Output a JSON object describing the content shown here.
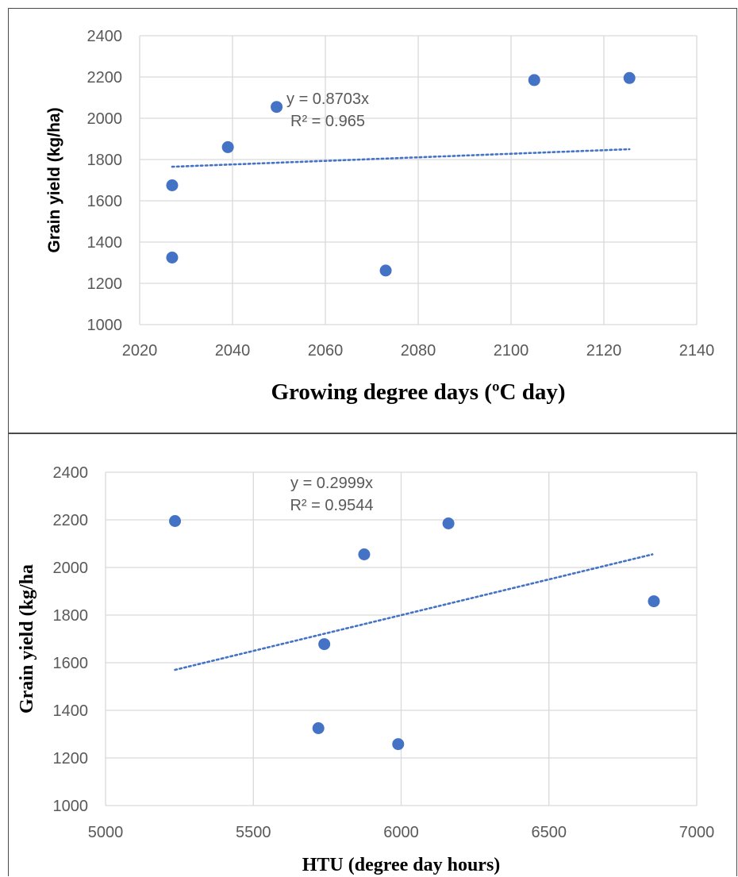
{
  "chart_data": [
    {
      "type": "scatter",
      "xlabel": "Growing degree days (ºC day)",
      "ylabel": "Grain yield (kg/ha)",
      "xlim": [
        2020,
        2140
      ],
      "ylim": [
        1000,
        2400
      ],
      "x_ticks": [
        2020,
        2040,
        2060,
        2080,
        2100,
        2120,
        2140
      ],
      "y_ticks": [
        1000,
        1200,
        1400,
        1600,
        1800,
        2000,
        2200,
        2400
      ],
      "grid": true,
      "series": [
        {
          "points": [
            {
              "x": 2027,
              "y": 1325
            },
            {
              "x": 2027,
              "y": 1675
            },
            {
              "x": 2039,
              "y": 1860
            },
            {
              "x": 2049.5,
              "y": 2055
            },
            {
              "x": 2073,
              "y": 1262
            },
            {
              "x": 2105,
              "y": 2185
            },
            {
              "x": 2125.5,
              "y": 2195
            }
          ],
          "color": "#4472c4"
        }
      ],
      "trendline": {
        "x": [
          2027,
          2125.5
        ],
        "y": [
          1765,
          1850
        ],
        "style": "dotted",
        "color": "#4472c4",
        "equation": "y = 0.8703x",
        "r_squared": "R² = 0.965"
      }
    },
    {
      "type": "scatter",
      "xlabel": "HTU (degree day hours)",
      "ylabel": "Grain yield  (kg/ha",
      "xlim": [
        5000,
        7000
      ],
      "ylim": [
        1000,
        2400
      ],
      "x_ticks": [
        5000,
        5500,
        6000,
        6500,
        7000
      ],
      "y_ticks": [
        1000,
        1200,
        1400,
        1600,
        1800,
        2000,
        2200,
        2400
      ],
      "grid": true,
      "series": [
        {
          "points": [
            {
              "x": 5235,
              "y": 2195
            },
            {
              "x": 5720,
              "y": 1325
            },
            {
              "x": 5740,
              "y": 1678
            },
            {
              "x": 5875,
              "y": 2055
            },
            {
              "x": 5990,
              "y": 1258
            },
            {
              "x": 6160,
              "y": 2185
            },
            {
              "x": 6855,
              "y": 1858
            }
          ],
          "color": "#4472c4"
        }
      ],
      "trendline": {
        "x": [
          5235,
          6850
        ],
        "y": [
          1570,
          2055
        ],
        "style": "dotted",
        "color": "#4472c4",
        "equation": "y = 0.2999x",
        "r_squared": "R² = 0.9544"
      }
    }
  ]
}
